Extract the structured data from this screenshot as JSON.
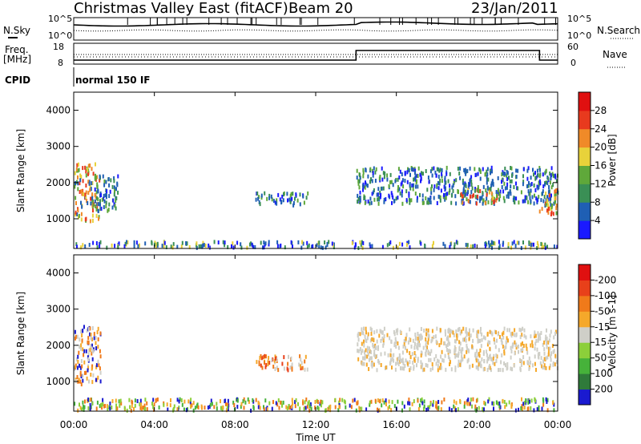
{
  "header": {
    "radar": "Christmas Valley East (fitACF)",
    "beam": "Beam 20",
    "date": "23/Jan/2011"
  },
  "params": {
    "nsky_label": "N.Sky",
    "nsearch_label": "N.Search",
    "freq_label_line1": "Freq.",
    "freq_label_line2": "[MHz]",
    "nave_label": "Nave",
    "cpid_label": "CPID",
    "cpid_value": "normal 150 IF",
    "noise_ticks": [
      "10^5",
      "10^0"
    ],
    "freq_ticks": [
      "18",
      "8"
    ],
    "nave_ticks": [
      "60",
      "0"
    ]
  },
  "x_axis": {
    "label": "Time UT",
    "ticks": [
      "00:00",
      "04:00",
      "08:00",
      "12:00",
      "16:00",
      "20:00",
      "00:00"
    ]
  },
  "chart_data": [
    {
      "type": "heatmap",
      "panel": "power",
      "ylabel": "Slant Range [km]",
      "ylim": [
        180,
        4500
      ],
      "xlim_hours": [
        0,
        24
      ],
      "yticks": [
        1000,
        2000,
        3000,
        4000
      ],
      "colorbar": {
        "label": "Power [dB]",
        "ticks": [
          "4",
          "8",
          "12",
          "16",
          "20",
          "24",
          "28"
        ],
        "colors": [
          "#1a1aff",
          "#1f5fb4",
          "#3a8f55",
          "#5fa83a",
          "#e8d23a",
          "#f08a28",
          "#e83a1e",
          "#e01010"
        ]
      },
      "echo_regions": [
        {
          "t": [
            0.0,
            1.3
          ],
          "r": [
            900,
            2500
          ],
          "level": "strong"
        },
        {
          "t": [
            1.0,
            2.2
          ],
          "r": [
            1200,
            2200
          ],
          "level": "medium"
        },
        {
          "t": [
            9.0,
            11.6
          ],
          "r": [
            1350,
            1700
          ],
          "level": "medium"
        },
        {
          "t": [
            14.0,
            24.0
          ],
          "r": [
            1400,
            2400
          ],
          "level": "medium"
        },
        {
          "t": [
            19.0,
            21.0
          ],
          "r": [
            1400,
            1800
          ],
          "level": "strong"
        },
        {
          "t": [
            23.0,
            24.0
          ],
          "r": [
            1100,
            1800
          ],
          "level": "strong"
        },
        {
          "t": [
            0.0,
            24.0
          ],
          "r": [
            180,
            350
          ],
          "level": "weak"
        }
      ]
    },
    {
      "type": "heatmap",
      "panel": "velocity",
      "ylabel": "Slant Range [km]",
      "ylim": [
        180,
        4500
      ],
      "xlim_hours": [
        0,
        24
      ],
      "yticks": [
        1000,
        2000,
        3000,
        4000
      ],
      "colorbar": {
        "label": "Velocity [m s-1]",
        "ticks": [
          "200",
          "100",
          "50",
          "15",
          "-15",
          "-50",
          "-100",
          "-200"
        ],
        "colors": [
          "#1a1ad0",
          "#2f7a3a",
          "#46b23a",
          "#8ccf3a",
          "#cfcfc8",
          "#f5a82a",
          "#f07a1a",
          "#e8401a",
          "#e01010"
        ]
      },
      "echo_regions": [
        {
          "t": [
            0.0,
            1.3
          ],
          "r": [
            900,
            2500
          ],
          "class": "slow"
        },
        {
          "t": [
            9.0,
            11.6
          ],
          "r": [
            1300,
            1700
          ],
          "class": "negative"
        },
        {
          "t": [
            14.0,
            24.0
          ],
          "r": [
            1300,
            2450
          ],
          "class": "ground_scatter"
        },
        {
          "t": [
            0.0,
            24.0
          ],
          "r": [
            180,
            500
          ],
          "class": "mixed"
        }
      ]
    }
  ]
}
